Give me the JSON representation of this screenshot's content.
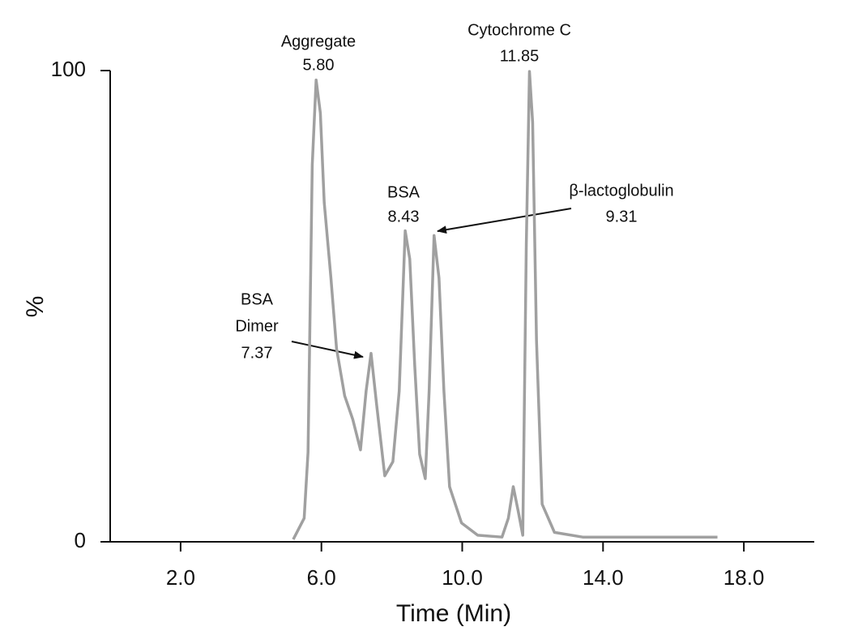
{
  "chart_data": {
    "type": "line",
    "x_label": "Time (Min)",
    "y_label": "%",
    "xlim": [
      0,
      20
    ],
    "ylim": [
      0,
      100
    ],
    "xticks": [
      {
        "value": 2,
        "label": "2.0"
      },
      {
        "value": 6,
        "label": "6.0"
      },
      {
        "value": 10,
        "label": "10.0"
      },
      {
        "value": 14,
        "label": "14.0"
      },
      {
        "value": 18,
        "label": "18.0"
      }
    ],
    "yticks": [
      0,
      100
    ],
    "color": "#a0a0a0",
    "x": [
      5.2,
      5.51,
      5.62,
      5.74,
      5.85,
      5.97,
      6.08,
      6.27,
      6.43,
      6.66,
      6.89,
      7.11,
      7.27,
      7.41,
      7.57,
      7.8,
      8.03,
      8.21,
      8.38,
      8.51,
      8.65,
      8.79,
      8.95,
      9.06,
      9.2,
      9.34,
      9.48,
      9.64,
      9.98,
      10.44,
      11.13,
      11.31,
      11.45,
      11.59,
      11.72,
      11.82,
      11.91,
      12.0,
      12.11,
      12.27,
      12.62,
      13.42,
      17.25
    ],
    "values": [
      0.5,
      5,
      19,
      80,
      98,
      91,
      72,
      56,
      41,
      31,
      26,
      19.5,
      32,
      40,
      29,
      14,
      17,
      32,
      66,
      60,
      37.5,
      18.6,
      13.4,
      32,
      65,
      56,
      32,
      11.7,
      4,
      1.4,
      1,
      5,
      11.7,
      6.5,
      1.4,
      63,
      99.8,
      89,
      42.7,
      8,
      2,
      1,
      1
    ],
    "annotations": [
      {
        "text": [
          "Aggregate",
          "5.80"
        ]
      },
      {
        "text": [
          "Cytochrome C",
          "11.85"
        ]
      },
      {
        "text": [
          "BSA",
          "8.43"
        ]
      },
      {
        "text": [
          "β-lactoglobulin",
          "9.31"
        ]
      },
      {
        "text": [
          "BSA",
          "Dimer",
          "7.37"
        ]
      }
    ]
  }
}
